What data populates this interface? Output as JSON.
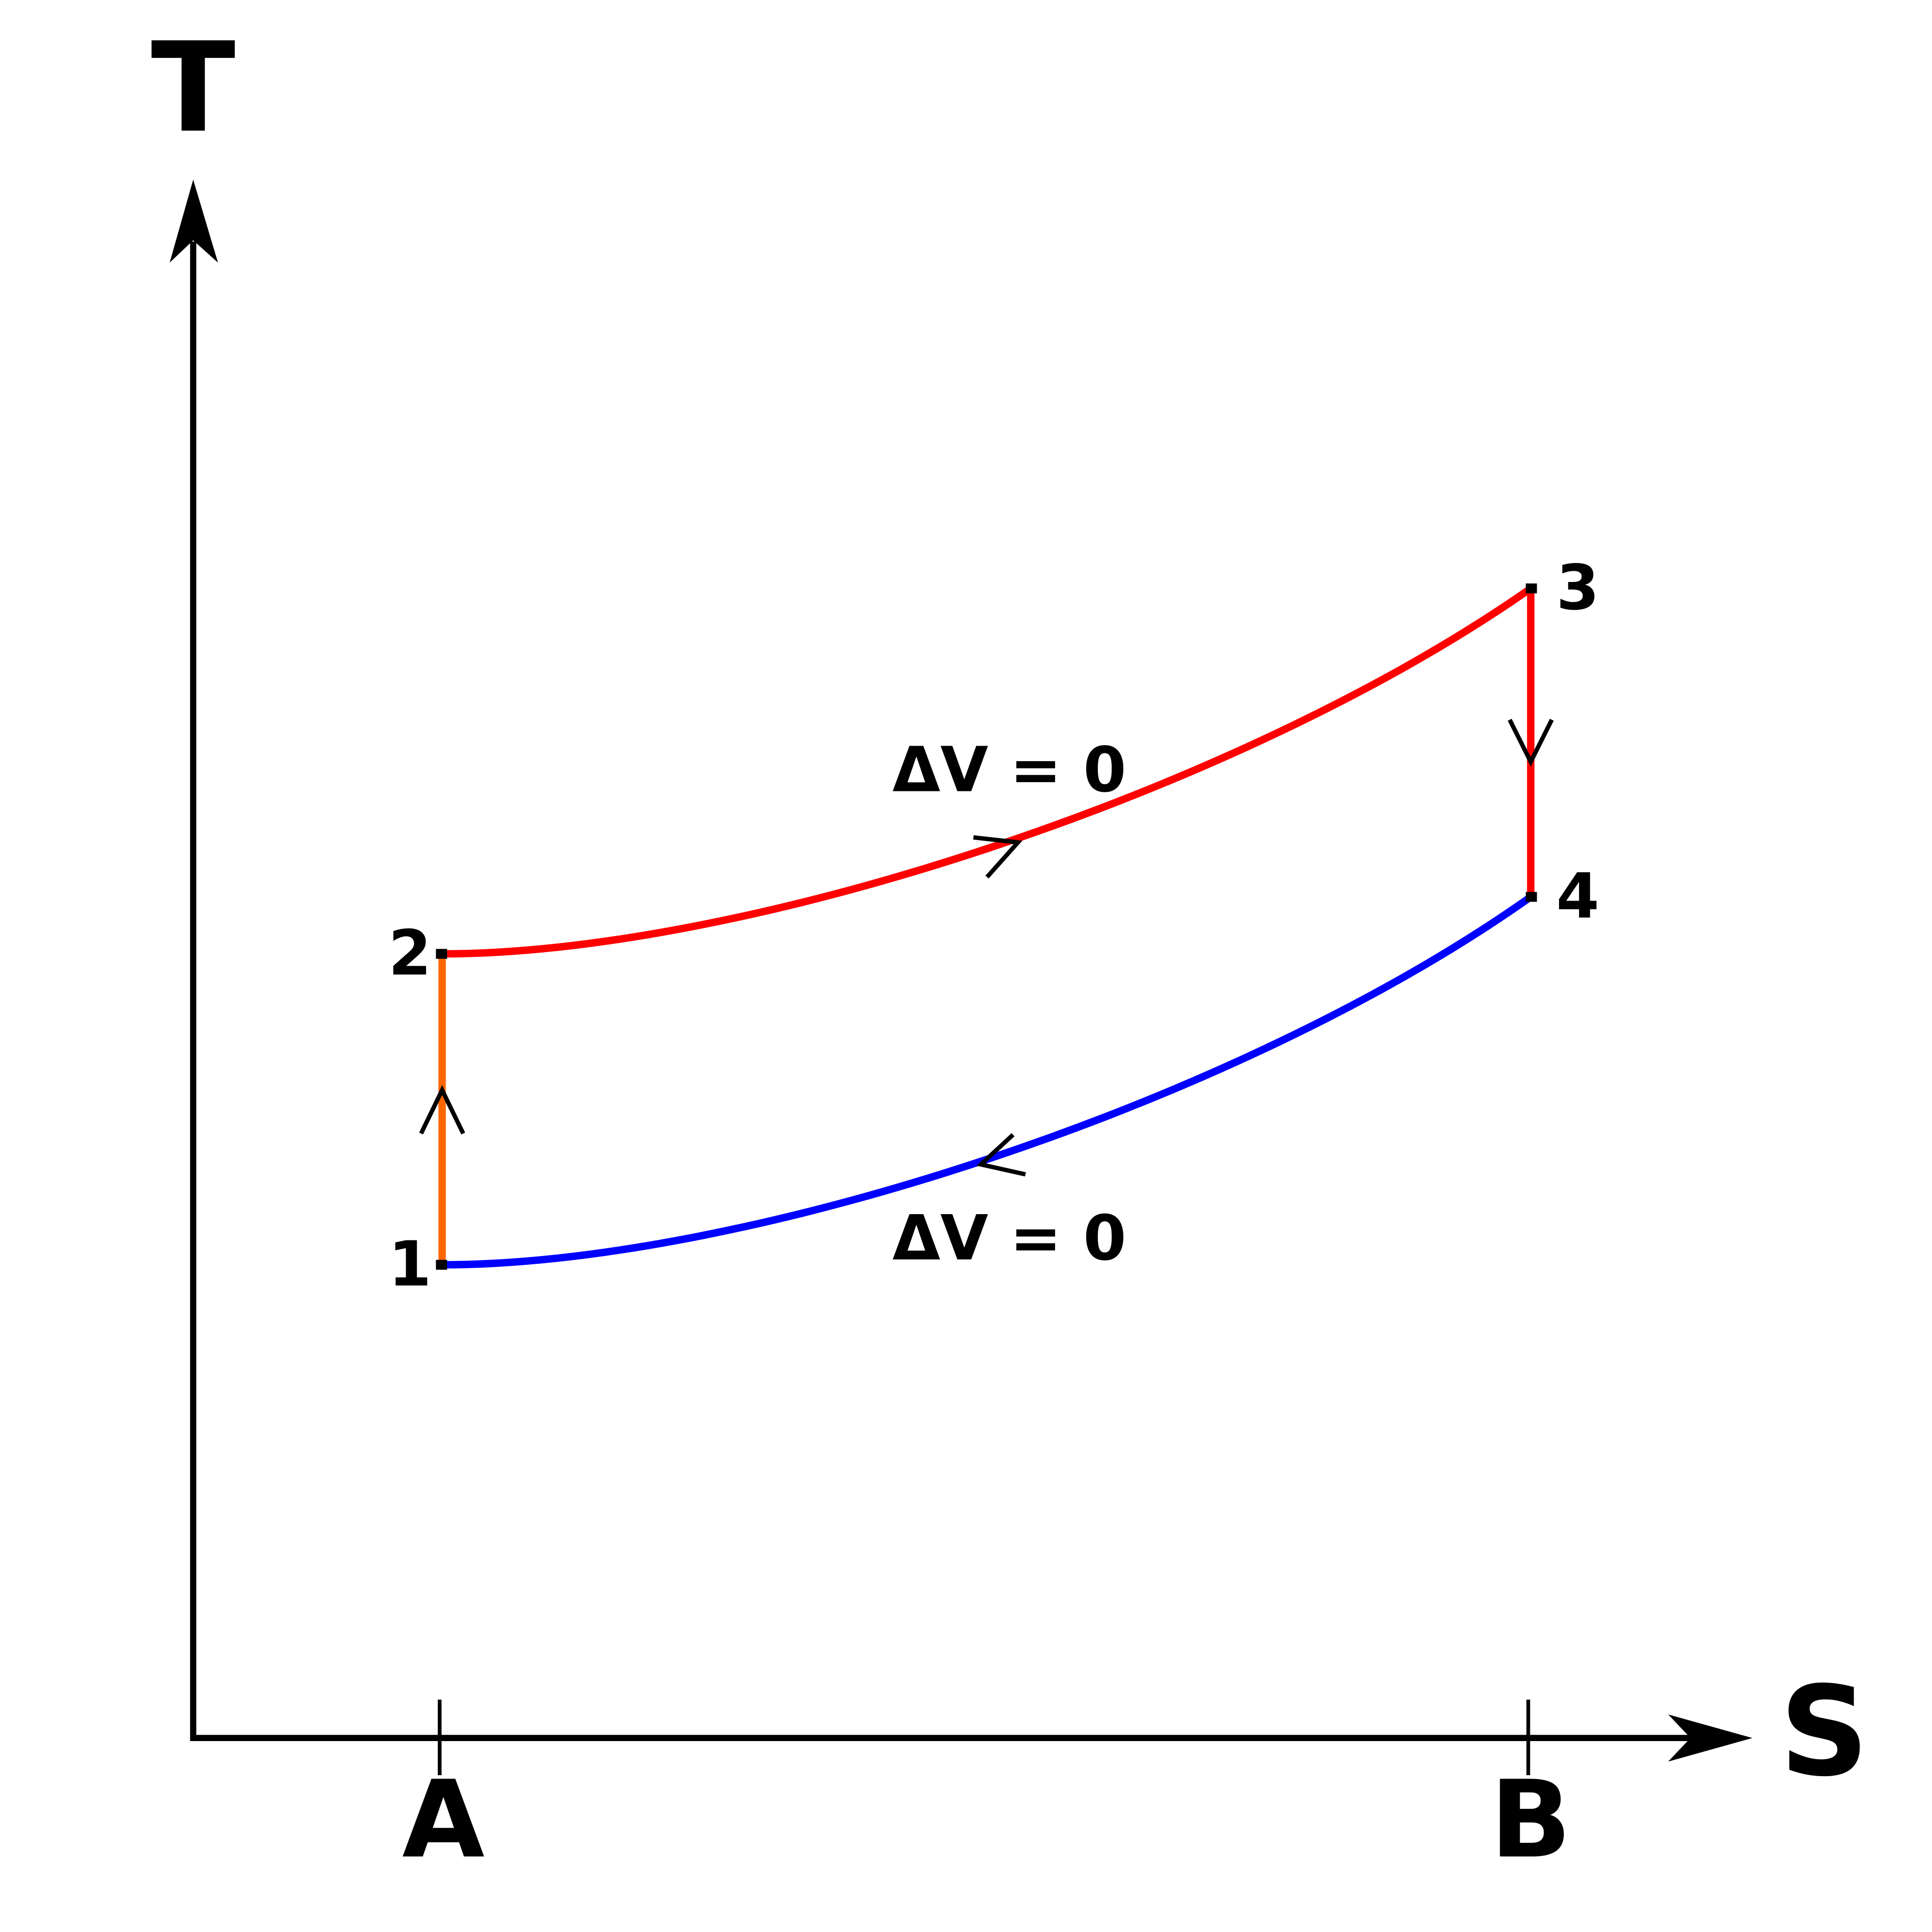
{
  "axes": {
    "y_label": "T",
    "x_label": "S",
    "x_ticks": [
      "A",
      "B"
    ]
  },
  "points": [
    "1",
    "2",
    "3",
    "4"
  ],
  "annotations": [
    "ΔV = 0",
    "ΔV = 0"
  ]
}
